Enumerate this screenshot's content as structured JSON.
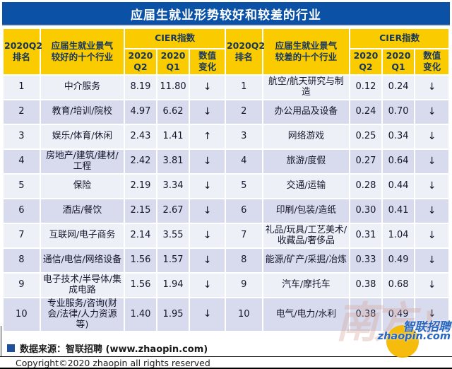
{
  "title": "应届生就业形势较好和较差的行业",
  "colors": {
    "title_blue": "#0B52A6",
    "header_gold": "#FACC00",
    "header_text": "#17365D",
    "row_light": "#EEF0F8",
    "row_dark": "#D8DBEE",
    "body_text": "#15152B",
    "footer_square": "#1F4E9B",
    "wm_blue": "#2666C0",
    "wm_yellow": "#F5B800"
  },
  "header": {
    "left": {
      "rank": "2020Q2\n排名",
      "industry": "应届生就业景气\n较好的十个行业",
      "cier": "CIER指数",
      "q2": "2020\nQ2",
      "q1": "2020\nQ1",
      "change": "数值\n变化"
    },
    "right": {
      "rank": "2020Q2\n排名",
      "industry": "应届生就业景气\n较差的十个行业",
      "cier": "CIER指数",
      "q2": "2020\nQ2",
      "q1": "2020\nQ1",
      "change": "数值\n变化"
    }
  },
  "rows": [
    {
      "left": {
        "rank": "1",
        "industry": "中介服务",
        "q2": "8.19",
        "q1": "11.80",
        "change": "↓"
      },
      "right": {
        "rank": "1",
        "industry": "航空/航天研究与制造",
        "q2": "0.12",
        "q1": "0.24",
        "change": "↓"
      }
    },
    {
      "left": {
        "rank": "2",
        "industry": "教育/培训/院校",
        "q2": "4.97",
        "q1": "6.62",
        "change": "↓"
      },
      "right": {
        "rank": "2",
        "industry": "办公用品及设备",
        "q2": "0.24",
        "q1": "0.70",
        "change": "↓"
      }
    },
    {
      "left": {
        "rank": "3",
        "industry": "娱乐/体育/休闲",
        "q2": "2.43",
        "q1": "1.41",
        "change": "↑"
      },
      "right": {
        "rank": "3",
        "industry": "网络游戏",
        "q2": "0.25",
        "q1": "0.34",
        "change": "↓"
      }
    },
    {
      "left": {
        "rank": "4",
        "industry": "房地产/建筑/建材/工程",
        "q2": "2.42",
        "q1": "3.81",
        "change": "↓"
      },
      "right": {
        "rank": "4",
        "industry": "旅游/度假",
        "q2": "0.27",
        "q1": "0.64",
        "change": "↓"
      }
    },
    {
      "left": {
        "rank": "5",
        "industry": "保险",
        "q2": "2.19",
        "q1": "3.34",
        "change": "↓"
      },
      "right": {
        "rank": "5",
        "industry": "交通/运输",
        "q2": "0.28",
        "q1": "0.44",
        "change": "↓"
      }
    },
    {
      "left": {
        "rank": "6",
        "industry": "酒店/餐饮",
        "q2": "2.15",
        "q1": "2.67",
        "change": "↓"
      },
      "right": {
        "rank": "6",
        "industry": "印刷/包装/造纸",
        "q2": "0.30",
        "q1": "0.41",
        "change": "↓"
      }
    },
    {
      "left": {
        "rank": "7",
        "industry": "互联网/电子商务",
        "q2": "2.14",
        "q1": "3.55",
        "change": "↓"
      },
      "right": {
        "rank": "7",
        "industry": "礼品/玩具/工艺美术/收藏品/奢侈品",
        "q2": "0.31",
        "q1": "1.04",
        "change": "↓"
      }
    },
    {
      "left": {
        "rank": "8",
        "industry": "通信/电信/网络设备",
        "q2": "1.56",
        "q1": "1.57",
        "change": "↓"
      },
      "right": {
        "rank": "8",
        "industry": "能源/矿产/采掘/冶炼",
        "q2": "0.33",
        "q1": "0.49",
        "change": "↓"
      }
    },
    {
      "left": {
        "rank": "9",
        "industry": "电子技术/半导体/集成电路",
        "q2": "1.56",
        "q1": "1.94",
        "change": "↓"
      },
      "right": {
        "rank": "9",
        "industry": "汽车/摩托车",
        "q2": "0.38",
        "q1": "0.68",
        "change": "↓"
      }
    },
    {
      "left": {
        "rank": "10",
        "industry": "专业服务/咨询(财会/法律/人力资源等)",
        "q2": "1.40",
        "q1": "1.95",
        "change": "↓"
      },
      "right": {
        "rank": "10",
        "industry": "电气/电力/水利",
        "q2": "0.38",
        "q1": "0.49",
        "change": "↓"
      }
    }
  ],
  "footer": {
    "source": "数据来源：智联招聘 (www.zhaopin.com)",
    "copyright": "Copyright©2020 zhaopin all rights reserved"
  },
  "watermark": {
    "faint_text": "南方+",
    "brand_cn": "智联招聘",
    "brand_domain": "zhaopin.com"
  },
  "chart_data": {
    "type": "table",
    "title": "应届生就业形势较好和较差的行业",
    "better_industries": {
      "label": "应届生就业景气较好的十个行业",
      "columns": [
        "2020Q2排名",
        "行业",
        "CIER指数 2020Q2",
        "CIER指数 2020Q1",
        "数值变化"
      ],
      "rows": [
        [
          1,
          "中介服务",
          8.19,
          11.8,
          "下降"
        ],
        [
          2,
          "教育/培训/院校",
          4.97,
          6.62,
          "下降"
        ],
        [
          3,
          "娱乐/体育/休闲",
          2.43,
          1.41,
          "上升"
        ],
        [
          4,
          "房地产/建筑/建材/工程",
          2.42,
          3.81,
          "下降"
        ],
        [
          5,
          "保险",
          2.19,
          3.34,
          "下降"
        ],
        [
          6,
          "酒店/餐饮",
          2.15,
          2.67,
          "下降"
        ],
        [
          7,
          "互联网/电子商务",
          2.14,
          3.55,
          "下降"
        ],
        [
          8,
          "通信/电信/网络设备",
          1.56,
          1.57,
          "下降"
        ],
        [
          9,
          "电子技术/半导体/集成电路",
          1.56,
          1.94,
          "下降"
        ],
        [
          10,
          "专业服务/咨询(财会/法律/人力资源等)",
          1.4,
          1.95,
          "下降"
        ]
      ]
    },
    "worse_industries": {
      "label": "应届生就业景气较差的十个行业",
      "columns": [
        "2020Q2排名",
        "行业",
        "CIER指数 2020Q2",
        "CIER指数 2020Q1",
        "数值变化"
      ],
      "rows": [
        [
          1,
          "航空/航天研究与制造",
          0.12,
          0.24,
          "下降"
        ],
        [
          2,
          "办公用品及设备",
          0.24,
          0.7,
          "下降"
        ],
        [
          3,
          "网络游戏",
          0.25,
          0.34,
          "下降"
        ],
        [
          4,
          "旅游/度假",
          0.27,
          0.64,
          "下降"
        ],
        [
          5,
          "交通/运输",
          0.28,
          0.44,
          "下降"
        ],
        [
          6,
          "印刷/包装/造纸",
          0.3,
          0.41,
          "下降"
        ],
        [
          7,
          "礼品/玩具/工艺美术/收藏品/奢侈品",
          0.31,
          1.04,
          "下降"
        ],
        [
          8,
          "能源/矿产/采掘/冶炼",
          0.33,
          0.49,
          "下降"
        ],
        [
          9,
          "汽车/摩托车",
          0.38,
          0.68,
          "下降"
        ],
        [
          10,
          "电气/电力/水利",
          0.38,
          0.49,
          "下降"
        ]
      ]
    }
  }
}
